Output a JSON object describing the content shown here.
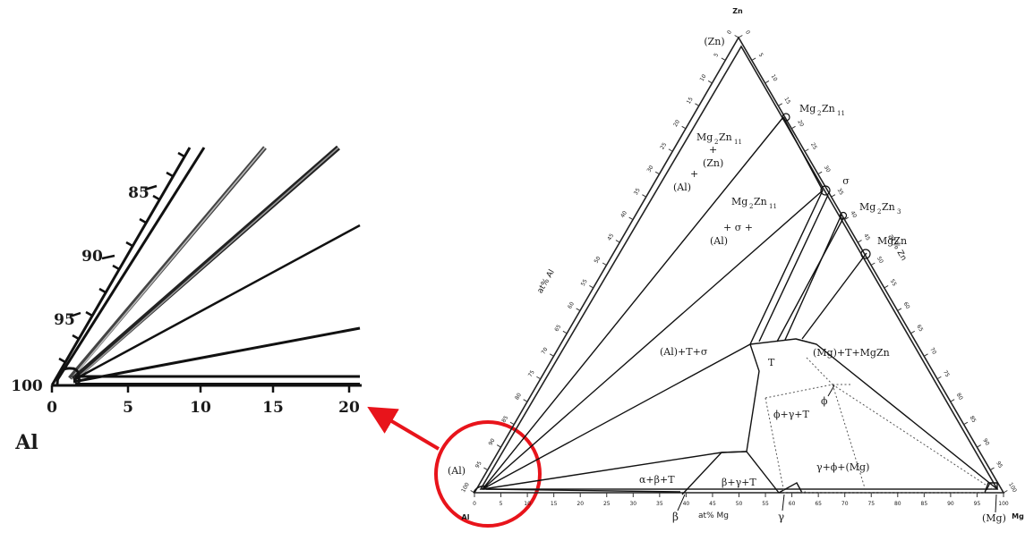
{
  "inset": {
    "axis_label": "Al",
    "x_ticks": [
      "0",
      "5",
      "10",
      "15",
      "20"
    ],
    "y_ticks": [
      "85",
      "90",
      "95",
      "100"
    ]
  },
  "ternary": {
    "vertices": {
      "top": "Zn",
      "left": "Al",
      "right": "Mg"
    },
    "axis_titles": {
      "left": "at% Al",
      "right": "at% Zn",
      "bottom": "at% Mg"
    },
    "left_ticks": [
      "100",
      "95",
      "90",
      "85",
      "80",
      "75",
      "70",
      "65",
      "60",
      "55",
      "50",
      "45",
      "40",
      "35",
      "30",
      "25",
      "20",
      "15",
      "10",
      "5",
      "0"
    ],
    "right_ticks": [
      "0",
      "5",
      "10",
      "15",
      "20",
      "25",
      "30",
      "35",
      "40",
      "45",
      "50",
      "55",
      "60",
      "65",
      "70",
      "75",
      "80",
      "85",
      "90",
      "95",
      "100"
    ],
    "bottom_ticks": [
      "0",
      "5",
      "10",
      "15",
      "20",
      "25",
      "30",
      "35",
      "40",
      "45",
      "50",
      "55",
      "60",
      "65",
      "70",
      "75",
      "80",
      "85",
      "90",
      "95",
      "100"
    ],
    "labels": {
      "zn": "(Zn)",
      "mg2zn11": "Mg",
      "sigma": "σ",
      "mg2zn3": "Mg",
      "mgzn": "MgZn",
      "region1_a": "Mg",
      "region1_b": "+",
      "region1_c": "(Zn)",
      "region1_d": "+",
      "region1_e": "(Al)",
      "region2_a": "Mg",
      "region2_b": "+ σ +",
      "region2_c": "(Al)",
      "al_t_sigma": "(Al)+T+σ",
      "t": "T",
      "mg_t_mgzn": "(Mg)+T+MgZn",
      "phi": "ϕ",
      "phi_gamma_t": "ϕ+γ+T",
      "gamma_phi_mg": "γ+ϕ+(Mg)",
      "alpha_beta_t": "α+β+T",
      "beta_gamma_t": "β+γ+T",
      "beta": "β",
      "gamma": "γ",
      "al_corner": "(Al)",
      "mg_corner": "(Mg)",
      "mg2zn11_sub": "2",
      "mg2zn11_sub2": "Zn",
      "mg2zn11_sub3": "11",
      "mg2zn3_sub": "2",
      "mg2zn3_sub2": "Zn",
      "mg2zn3_sub3": "3"
    }
  },
  "colors": {
    "ink": "#1a1a1a",
    "highlight": "#e8141b"
  }
}
